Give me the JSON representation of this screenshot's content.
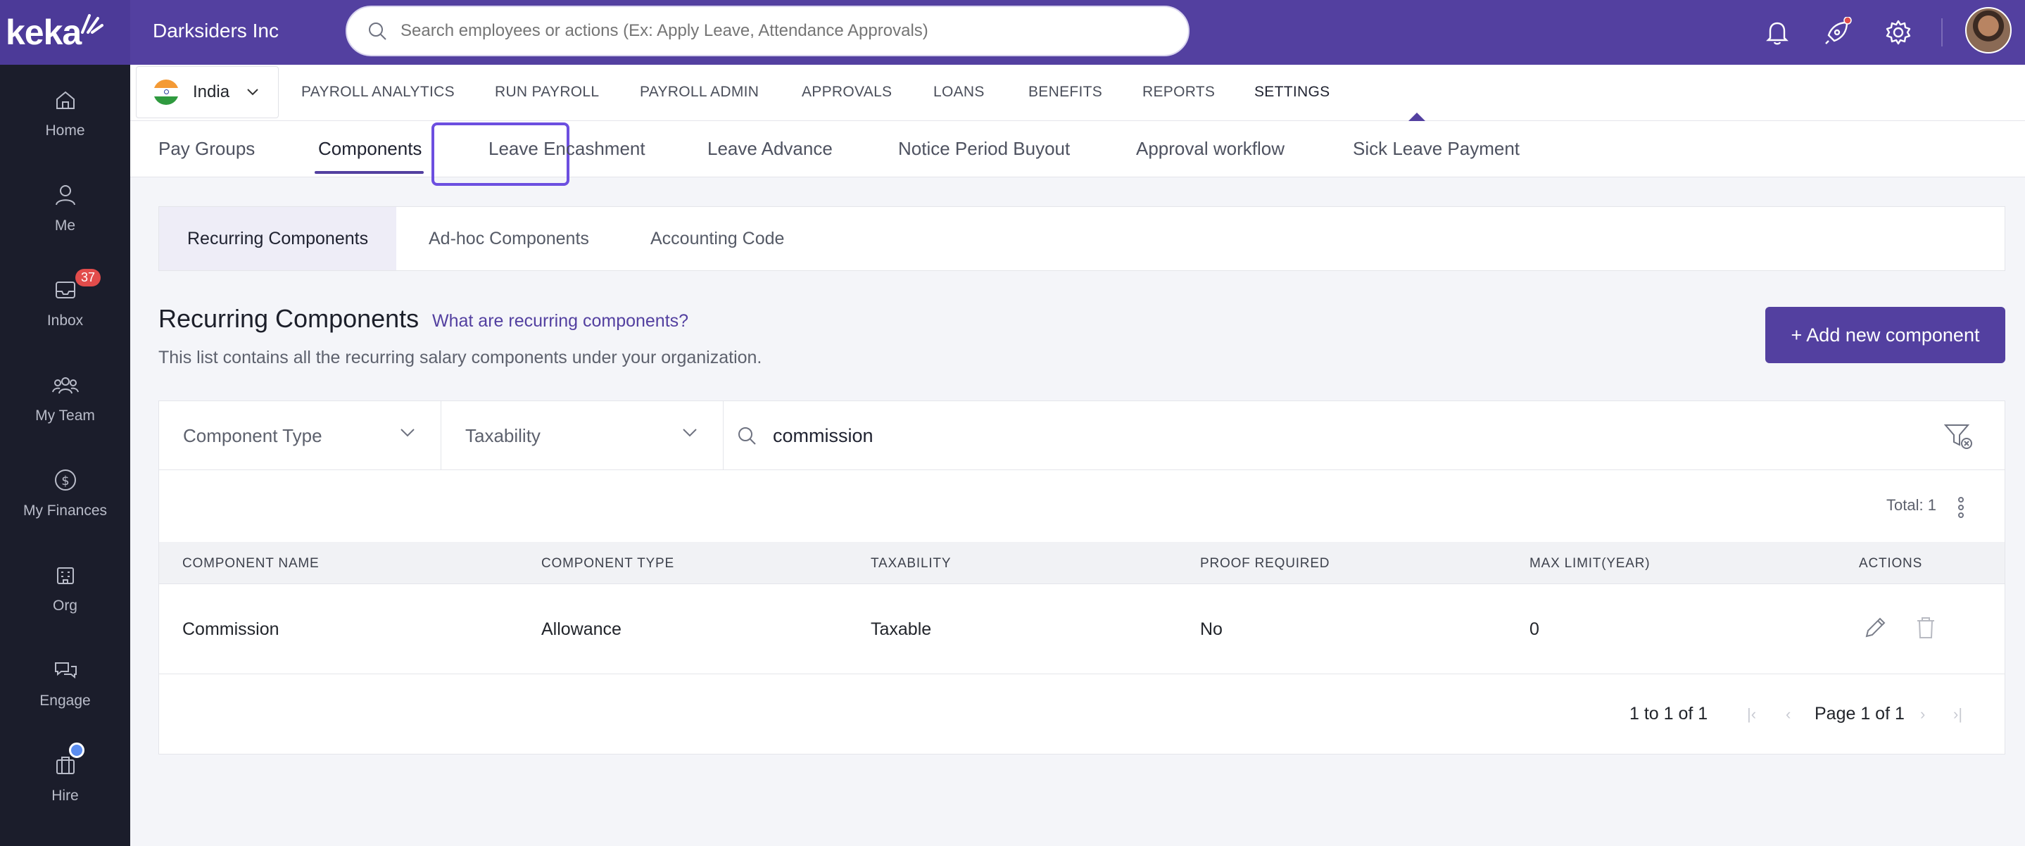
{
  "app": {
    "logo": "keka",
    "company": "Darksiders Inc"
  },
  "search": {
    "placeholder": "Search employees or actions (Ex: Apply Leave, Attendance Approvals)"
  },
  "sidebar": {
    "items": [
      {
        "label": "Home",
        "icon": "home-icon"
      },
      {
        "label": "Me",
        "icon": "user-icon"
      },
      {
        "label": "Inbox",
        "icon": "inbox-icon",
        "badge": "37"
      },
      {
        "label": "My Team",
        "icon": "team-icon"
      },
      {
        "label": "My Finances",
        "icon": "dollar-icon"
      },
      {
        "label": "Org",
        "icon": "org-icon"
      },
      {
        "label": "Engage",
        "icon": "engage-icon"
      },
      {
        "label": "Hire",
        "icon": "briefcase-icon"
      }
    ]
  },
  "module_nav": {
    "country": "India",
    "items": [
      "PAYROLL ANALYTICS",
      "RUN PAYROLL",
      "PAYROLL ADMIN",
      "APPROVALS",
      "LOANS",
      "BENEFITS",
      "REPORTS",
      "SETTINGS"
    ],
    "active": "SETTINGS"
  },
  "sub_tabs": {
    "items": [
      "Pay Groups",
      "Components",
      "Leave Encashment",
      "Leave Advance",
      "Notice Period Buyout",
      "Approval workflow",
      "Sick Leave Payment"
    ],
    "active": "Components"
  },
  "inner_tabs": {
    "items": [
      "Recurring Components",
      "Ad-hoc Components",
      "Accounting Code"
    ],
    "active": "Recurring Components"
  },
  "section": {
    "title": "Recurring Components",
    "help_link": "What are recurring components?",
    "description": "This list contains all the recurring salary components under your organization.",
    "add_button": "+ Add new component"
  },
  "filters": {
    "component_type": "Component Type",
    "taxability": "Taxability",
    "search_value": "commission"
  },
  "table": {
    "total": "Total: 1",
    "columns": [
      "COMPONENT NAME",
      "COMPONENT TYPE",
      "TAXABILITY",
      "PROOF REQUIRED",
      "MAX LIMIT(YEAR)",
      "ACTIONS"
    ],
    "rows": [
      {
        "name": "Commission",
        "type": "Allowance",
        "taxability": "Taxable",
        "proof": "No",
        "max_limit": "0"
      }
    ],
    "pagination": {
      "range": "1 to 1 of 1",
      "page": "Page 1 of 1"
    }
  },
  "colors": {
    "brand": "#5340a0",
    "sidebar": "#1b1d2b",
    "badge": "#e24c4b"
  }
}
